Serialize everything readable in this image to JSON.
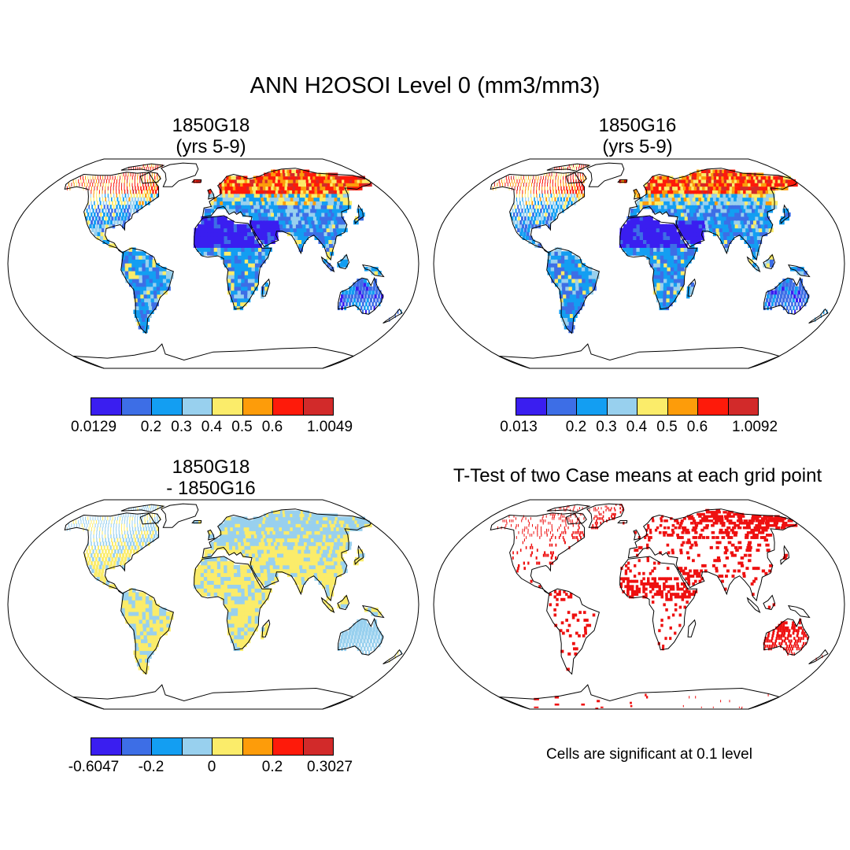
{
  "figure": {
    "title": "ANN H2OSOI Level 0 (mm3/mm3)",
    "note": "Cells are significant at 0.1 level"
  },
  "panels": [
    {
      "id": "p1",
      "title_line1": "1850G18",
      "title_line2": "(yrs 5-9)",
      "colorbar": {
        "colors": [
          "#3a1ef0",
          "#3d6ee6",
          "#139ef2",
          "#98d0ee",
          "#fbec6a",
          "#fd9c0a",
          "#fe1a0a",
          "#d22a2a"
        ],
        "labels": [
          "0.0129",
          "0.2",
          "0.3",
          "0.4",
          "0.5",
          "0.6",
          "1.0049"
        ]
      }
    },
    {
      "id": "p2",
      "title_line1": "1850G16",
      "title_line2": "(yrs 5-9)",
      "colorbar": {
        "colors": [
          "#3a1ef0",
          "#3d6ee6",
          "#139ef2",
          "#98d0ee",
          "#fbec6a",
          "#fd9c0a",
          "#fe1a0a",
          "#d22a2a"
        ],
        "labels": [
          "0.013",
          "0.2",
          "0.3",
          "0.4",
          "0.5",
          "0.6",
          "1.0092"
        ]
      }
    },
    {
      "id": "p3",
      "title_line1": "1850G18",
      "title_line2": "- 1850G16",
      "colorbar": {
        "colors": [
          "#3a1ef0",
          "#3d6ee6",
          "#139ef2",
          "#98d0ee",
          "#fbec6a",
          "#fd9c0a",
          "#fe1a0a",
          "#d22a2a"
        ],
        "labels": [
          "-0.6047",
          "-0.2",
          "0",
          "0.2",
          "0.3027"
        ]
      }
    },
    {
      "id": "p4",
      "title": "T-Test of two Case means at each grid point"
    }
  ],
  "colors": {
    "significant": "#ee1111",
    "coast": "#000000"
  }
}
